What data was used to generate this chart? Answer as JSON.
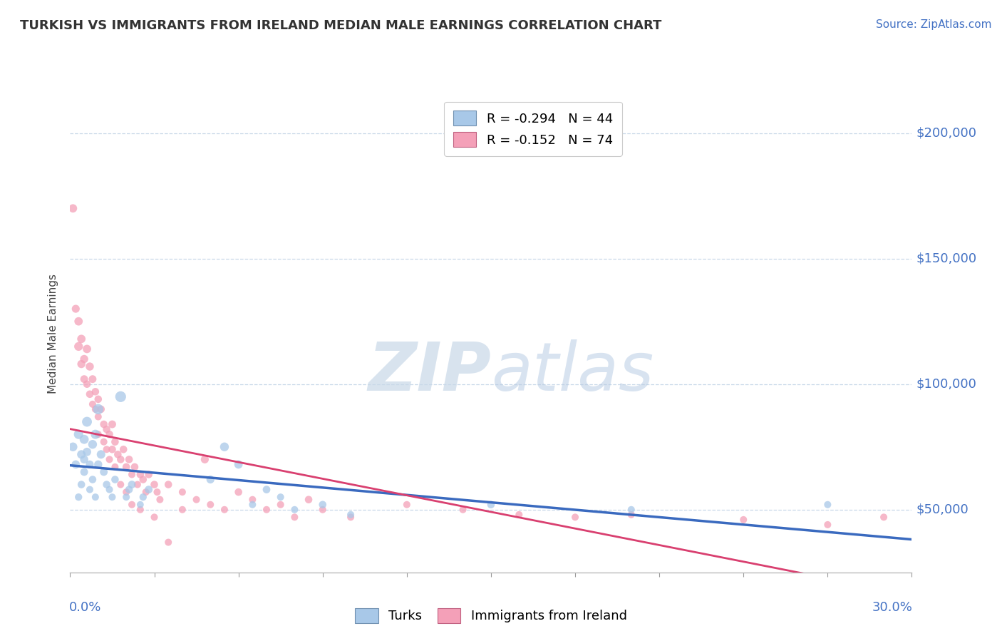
{
  "title": "TURKISH VS IMMIGRANTS FROM IRELAND MEDIAN MALE EARNINGS CORRELATION CHART",
  "source": "Source: ZipAtlas.com",
  "ylabel": "Median Male Earnings",
  "yticks": [
    50000,
    100000,
    150000,
    200000
  ],
  "ytick_labels": [
    "$50,000",
    "$100,000",
    "$150,000",
    "$200,000"
  ],
  "xlim": [
    0.0,
    0.3
  ],
  "ylim": [
    25000,
    215000
  ],
  "legend_turks": "R = -0.294   N = 44",
  "legend_ireland": "R = -0.152   N = 74",
  "turks_color": "#a8c8e8",
  "ireland_color": "#f4a0b8",
  "turks_line_color": "#3a6abf",
  "ireland_line_color": "#d94070",
  "turks_scatter": [
    [
      0.001,
      75000
    ],
    [
      0.002,
      68000
    ],
    [
      0.003,
      80000
    ],
    [
      0.003,
      55000
    ],
    [
      0.004,
      72000
    ],
    [
      0.004,
      60000
    ],
    [
      0.005,
      78000
    ],
    [
      0.005,
      65000
    ],
    [
      0.005,
      70000
    ],
    [
      0.006,
      85000
    ],
    [
      0.006,
      73000
    ],
    [
      0.007,
      58000
    ],
    [
      0.007,
      68000
    ],
    [
      0.008,
      76000
    ],
    [
      0.008,
      62000
    ],
    [
      0.009,
      55000
    ],
    [
      0.009,
      80000
    ],
    [
      0.01,
      90000
    ],
    [
      0.01,
      68000
    ],
    [
      0.011,
      72000
    ],
    [
      0.012,
      65000
    ],
    [
      0.013,
      60000
    ],
    [
      0.014,
      58000
    ],
    [
      0.015,
      55000
    ],
    [
      0.016,
      62000
    ],
    [
      0.018,
      95000
    ],
    [
      0.02,
      55000
    ],
    [
      0.021,
      58000
    ],
    [
      0.022,
      60000
    ],
    [
      0.025,
      52000
    ],
    [
      0.026,
      55000
    ],
    [
      0.028,
      58000
    ],
    [
      0.05,
      62000
    ],
    [
      0.055,
      75000
    ],
    [
      0.06,
      68000
    ],
    [
      0.065,
      52000
    ],
    [
      0.07,
      58000
    ],
    [
      0.075,
      55000
    ],
    [
      0.08,
      50000
    ],
    [
      0.09,
      52000
    ],
    [
      0.1,
      48000
    ],
    [
      0.15,
      52000
    ],
    [
      0.2,
      50000
    ],
    [
      0.27,
      52000
    ]
  ],
  "ireland_scatter": [
    [
      0.001,
      170000
    ],
    [
      0.002,
      130000
    ],
    [
      0.003,
      115000
    ],
    [
      0.003,
      125000
    ],
    [
      0.004,
      108000
    ],
    [
      0.004,
      118000
    ],
    [
      0.005,
      102000
    ],
    [
      0.005,
      110000
    ],
    [
      0.006,
      100000
    ],
    [
      0.006,
      114000
    ],
    [
      0.007,
      96000
    ],
    [
      0.007,
      107000
    ],
    [
      0.008,
      92000
    ],
    [
      0.008,
      102000
    ],
    [
      0.009,
      90000
    ],
    [
      0.009,
      97000
    ],
    [
      0.01,
      87000
    ],
    [
      0.01,
      94000
    ],
    [
      0.01,
      80000
    ],
    [
      0.011,
      90000
    ],
    [
      0.012,
      84000
    ],
    [
      0.012,
      77000
    ],
    [
      0.013,
      82000
    ],
    [
      0.013,
      74000
    ],
    [
      0.014,
      80000
    ],
    [
      0.014,
      70000
    ],
    [
      0.015,
      84000
    ],
    [
      0.015,
      74000
    ],
    [
      0.016,
      77000
    ],
    [
      0.016,
      67000
    ],
    [
      0.017,
      72000
    ],
    [
      0.018,
      70000
    ],
    [
      0.018,
      60000
    ],
    [
      0.019,
      74000
    ],
    [
      0.02,
      67000
    ],
    [
      0.02,
      57000
    ],
    [
      0.021,
      70000
    ],
    [
      0.022,
      64000
    ],
    [
      0.022,
      52000
    ],
    [
      0.023,
      67000
    ],
    [
      0.024,
      60000
    ],
    [
      0.025,
      64000
    ],
    [
      0.025,
      50000
    ],
    [
      0.026,
      62000
    ],
    [
      0.027,
      57000
    ],
    [
      0.028,
      64000
    ],
    [
      0.03,
      60000
    ],
    [
      0.03,
      47000
    ],
    [
      0.031,
      57000
    ],
    [
      0.032,
      54000
    ],
    [
      0.035,
      60000
    ],
    [
      0.035,
      37000
    ],
    [
      0.04,
      57000
    ],
    [
      0.04,
      50000
    ],
    [
      0.045,
      54000
    ],
    [
      0.048,
      70000
    ],
    [
      0.05,
      52000
    ],
    [
      0.055,
      50000
    ],
    [
      0.06,
      57000
    ],
    [
      0.065,
      54000
    ],
    [
      0.07,
      50000
    ],
    [
      0.075,
      52000
    ],
    [
      0.08,
      47000
    ],
    [
      0.085,
      54000
    ],
    [
      0.09,
      50000
    ],
    [
      0.1,
      47000
    ],
    [
      0.12,
      52000
    ],
    [
      0.14,
      50000
    ],
    [
      0.16,
      48000
    ],
    [
      0.18,
      47000
    ],
    [
      0.2,
      48000
    ],
    [
      0.24,
      46000
    ],
    [
      0.27,
      44000
    ],
    [
      0.29,
      47000
    ]
  ],
  "turks_sizes": [
    80,
    70,
    90,
    55,
    75,
    58,
    85,
    62,
    68,
    100,
    72,
    52,
    65,
    80,
    58,
    52,
    88,
    110,
    68,
    75,
    62,
    58,
    52,
    52,
    58,
    120,
    52,
    58,
    62,
    50,
    55,
    62,
    65,
    80,
    72,
    52,
    60,
    52,
    52,
    58,
    52,
    58,
    52,
    52
  ],
  "ireland_sizes": [
    72,
    65,
    78,
    72,
    68,
    72,
    62,
    68,
    58,
    72,
    58,
    68,
    52,
    62,
    52,
    58,
    52,
    58,
    52,
    58,
    58,
    52,
    58,
    52,
    58,
    52,
    62,
    58,
    58,
    52,
    58,
    58,
    52,
    58,
    58,
    52,
    58,
    52,
    52,
    58,
    52,
    58,
    52,
    58,
    52,
    58,
    58,
    52,
    52,
    52,
    58,
    52,
    52,
    52,
    52,
    65,
    52,
    52,
    58,
    52,
    52,
    52,
    52,
    58,
    52,
    52,
    52,
    52,
    52,
    52,
    52,
    52,
    52,
    52
  ]
}
